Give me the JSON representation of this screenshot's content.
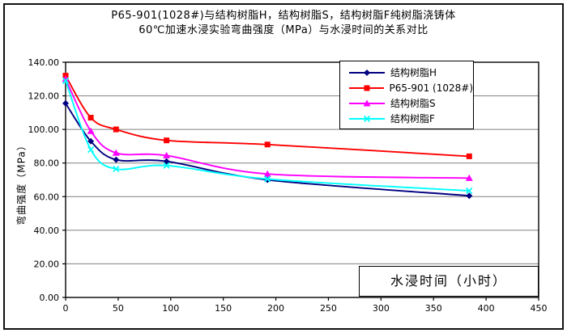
{
  "title": {
    "line1": "P65-901(1028#)与结构树脂H，结构树脂S，结构树脂F纯树脂浇铸体",
    "line2": "60℃加速水浸实验弯曲强度（MPa）与水浸时间的关系对比"
  },
  "chart_data": {
    "type": "line",
    "title": "P65-901(1028#)与结构树脂H，结构树脂S，结构树脂F纯树脂浇铸体 60℃加速水浸实验弯曲强度（MPa）与水浸时间的关系对比",
    "xlabel": "水浸时间（小时）",
    "ylabel": "弯曲强度（MPa）",
    "x": [
      0,
      24,
      48,
      96,
      192,
      384
    ],
    "series": [
      {
        "name": "结构树脂H",
        "color": "#000080",
        "marker": "diamond",
        "values": [
          115.5,
          93,
          82,
          81,
          70,
          60.5
        ]
      },
      {
        "name": "P65-901 (1028#)",
        "color": "#FF0000",
        "marker": "square",
        "values": [
          132,
          107,
          100,
          93.5,
          91,
          84
        ]
      },
      {
        "name": "结构树脂S",
        "color": "#FF00FF",
        "marker": "triangle",
        "values": [
          130,
          99,
          86,
          84.5,
          73.5,
          71
        ]
      },
      {
        "name": "结构树脂F",
        "color": "#00FFFF",
        "marker": "x",
        "values": [
          129,
          88,
          76.5,
          78.5,
          70.5,
          63.5
        ]
      }
    ],
    "xlim": [
      0,
      450
    ],
    "ylim": [
      0,
      140
    ],
    "xticks": [
      0,
      50,
      100,
      150,
      200,
      250,
      300,
      350,
      400,
      450
    ],
    "ytick_labels": [
      "0.00",
      "20.00",
      "40.00",
      "60.00",
      "80.00",
      "100.00",
      "120.00",
      "140.00"
    ],
    "grid": "horizontal",
    "legend_position": "top-right-inside",
    "colors": {
      "background": "#FFFFFF",
      "plot_border": "#000000",
      "gridline": "#808080",
      "text": "#000000"
    },
    "smoothed_lines": true
  }
}
